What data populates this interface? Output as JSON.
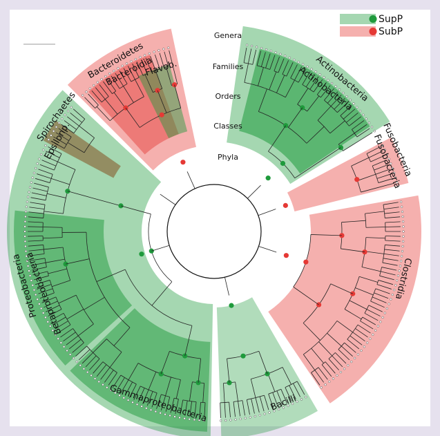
{
  "legend": [
    {
      "label": "SupP",
      "color": "#1f9a3c"
    },
    {
      "label": "SubP",
      "color": "#e53935"
    }
  ],
  "rings": [
    "Genera",
    "Families",
    "Orders",
    "Classes",
    "Phyla"
  ],
  "clades": [
    {
      "label": "Actinobacteria"
    },
    {
      "label": "Actinobacteria"
    },
    {
      "label": "Fusobacteria"
    },
    {
      "label": "Fusobacteria"
    },
    {
      "label": "Clostridia"
    },
    {
      "label": "Bacilli"
    },
    {
      "label": "Gammaproteobacteria"
    },
    {
      "label": "Betaproteobacteria"
    },
    {
      "label": "Proteobacteria"
    },
    {
      "label": "Epsilonp."
    },
    {
      "label": "Spirochaetes"
    },
    {
      "label": "Bacteroidia"
    },
    {
      "label": "Bacteroidetes"
    },
    {
      "label": "Flavob."
    }
  ]
}
